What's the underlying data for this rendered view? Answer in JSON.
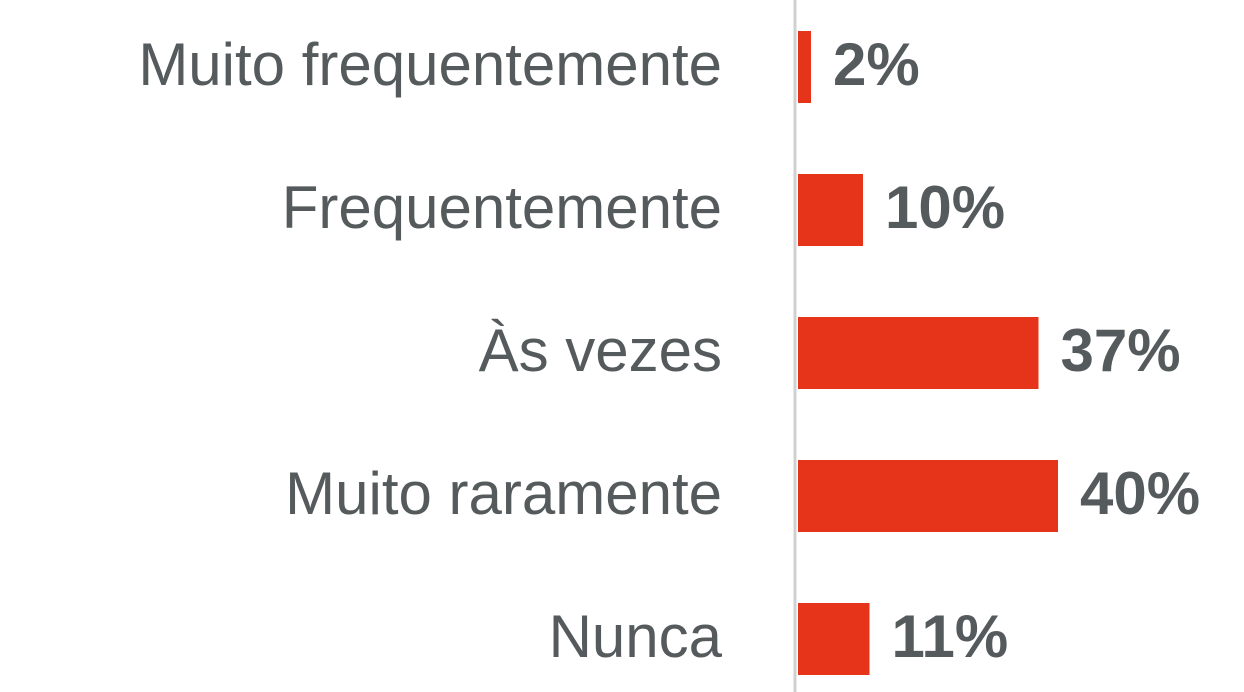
{
  "chart_data": {
    "type": "bar",
    "orientation": "horizontal",
    "categories": [
      "Muito frequentemente",
      "Frequentemente",
      "Às vezes",
      "Muito raramente",
      "Nunca"
    ],
    "values": [
      2,
      10,
      37,
      40,
      11
    ],
    "value_labels": [
      "2%",
      "10%",
      "37%",
      "40%",
      "11%"
    ],
    "color": "#e5341a"
  }
}
